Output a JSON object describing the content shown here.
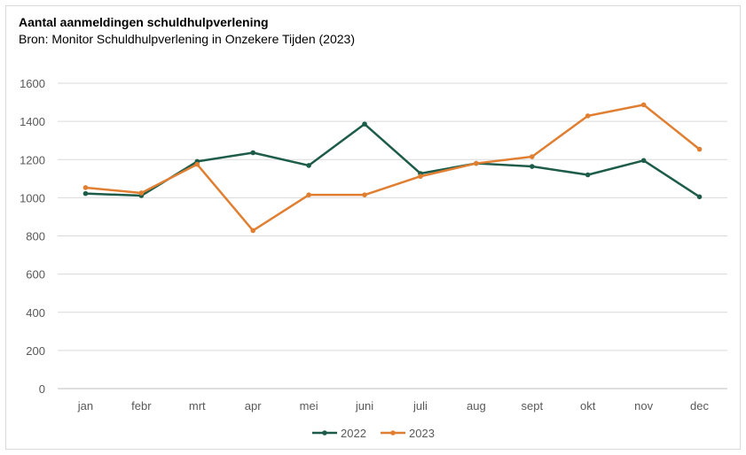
{
  "chart_data": {
    "type": "line",
    "title": "Aantal aanmeldingen schuldhulpverlening",
    "subtitle": "Bron: Monitor Schuldhulpverlening in Onzekere Tijden (2023)",
    "xlabel": "",
    "ylabel": "",
    "categories": [
      "jan",
      "febr",
      "mrt",
      "apr",
      "mei",
      "juni",
      "juli",
      "aug",
      "sept",
      "okt",
      "nov",
      "dec"
    ],
    "ylim": [
      0,
      1600
    ],
    "yticks": [
      0,
      200,
      400,
      600,
      800,
      1000,
      1200,
      1400,
      1600
    ],
    "grid": true,
    "legend_position": "bottom",
    "series": [
      {
        "name": "2022",
        "color": "#1e5c4a",
        "values": [
          1022,
          1011,
          1190,
          1236,
          1169,
          1386,
          1127,
          1180,
          1164,
          1120,
          1195,
          1005
        ]
      },
      {
        "name": "2023",
        "color": "#e07f32",
        "values": [
          1053,
          1025,
          1175,
          828,
          1015,
          1015,
          1112,
          1180,
          1215,
          1429,
          1487,
          1254
        ]
      }
    ]
  }
}
